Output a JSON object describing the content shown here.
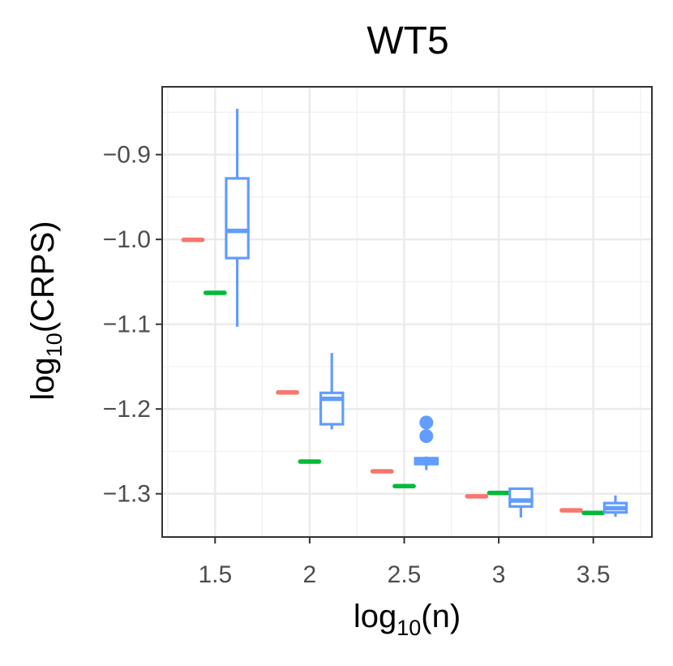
{
  "chart_data": {
    "type": "boxplot",
    "title": "WT5",
    "xlabel": {
      "base": "log",
      "sub": "10",
      "rest": "(n)"
    },
    "ylabel": {
      "base": "log",
      "sub": "10",
      "rest": "(CRPS)"
    },
    "xlim": [
      1.22,
      3.81
    ],
    "ylim": [
      -1.351,
      -0.82
    ],
    "x_ticks": [
      1.5,
      2,
      2.5,
      3,
      3.5
    ],
    "x_tick_labels": [
      "1.5",
      "2",
      "2.5",
      "3",
      "3.5"
    ],
    "y_ticks": [
      -0.9,
      -1.0,
      -1.1,
      -1.2,
      -1.3
    ],
    "y_tick_labels": [
      "−0.9",
      "−1.0",
      "−1.1",
      "−1.2",
      "−1.3"
    ],
    "dodge": 0.117,
    "box_width": 0.117,
    "grid": true,
    "series": [
      {
        "name": "red",
        "color": "#F8766D",
        "boxes": [
          {
            "x": 1.5,
            "min": -1.0005,
            "q1": -1.0005,
            "median": -1.0005,
            "q3": -1.0005,
            "max": -1.0005,
            "outliers": []
          },
          {
            "x": 2.0,
            "min": -1.1805,
            "q1": -1.1805,
            "median": -1.1805,
            "q3": -1.1805,
            "max": -1.1805,
            "outliers": []
          },
          {
            "x": 2.5,
            "min": -1.2735,
            "q1": -1.2735,
            "median": -1.2735,
            "q3": -1.2735,
            "max": -1.2735,
            "outliers": []
          },
          {
            "x": 3.0,
            "min": -1.303,
            "q1": -1.303,
            "median": -1.303,
            "q3": -1.303,
            "max": -1.303,
            "outliers": []
          },
          {
            "x": 3.5,
            "min": -1.3195,
            "q1": -1.3195,
            "median": -1.3195,
            "q3": -1.3195,
            "max": -1.3195,
            "outliers": []
          }
        ]
      },
      {
        "name": "green",
        "color": "#00BA38",
        "boxes": [
          {
            "x": 1.5,
            "min": -1.063,
            "q1": -1.063,
            "median": -1.063,
            "q3": -1.063,
            "max": -1.063,
            "outliers": []
          },
          {
            "x": 2.0,
            "min": -1.262,
            "q1": -1.262,
            "median": -1.262,
            "q3": -1.262,
            "max": -1.262,
            "outliers": []
          },
          {
            "x": 2.5,
            "min": -1.291,
            "q1": -1.291,
            "median": -1.291,
            "q3": -1.291,
            "max": -1.291,
            "outliers": []
          },
          {
            "x": 3.0,
            "min": -1.299,
            "q1": -1.299,
            "median": -1.299,
            "q3": -1.299,
            "max": -1.299,
            "outliers": []
          },
          {
            "x": 3.5,
            "min": -1.3225,
            "q1": -1.3225,
            "median": -1.3225,
            "q3": -1.3225,
            "max": -1.3225,
            "outliers": []
          }
        ]
      },
      {
        "name": "blue",
        "color": "#619CFF",
        "boxes": [
          {
            "x": 1.5,
            "min": -1.103,
            "q1": -1.022,
            "median": -0.99,
            "q3": -0.928,
            "max": -0.846,
            "outliers": []
          },
          {
            "x": 2.0,
            "min": -1.224,
            "q1": -1.218,
            "median": -1.188,
            "q3": -1.181,
            "max": -1.134,
            "outliers": []
          },
          {
            "x": 2.5,
            "min": -1.272,
            "q1": -1.265,
            "median": -1.261,
            "q3": -1.258,
            "max": -1.256,
            "outliers": [
              -1.216,
              -1.232
            ]
          },
          {
            "x": 3.0,
            "min": -1.328,
            "q1": -1.315,
            "median": -1.308,
            "q3": -1.294,
            "max": -1.294,
            "outliers": []
          },
          {
            "x": 3.5,
            "min": -1.327,
            "q1": -1.322,
            "median": -1.317,
            "q3": -1.311,
            "max": -1.302,
            "outliers": []
          }
        ]
      }
    ]
  }
}
